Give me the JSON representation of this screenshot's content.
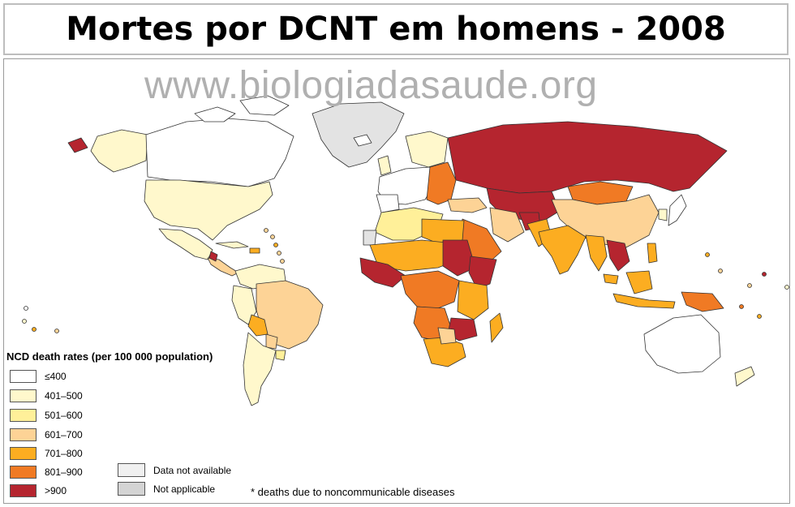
{
  "title": "Mortes por DCNT em homens - 2008",
  "watermark": "www.biologiadasaude.org",
  "legend": {
    "title": "NCD death rates (per 100 000 population)",
    "items": [
      {
        "label": "≤400",
        "color": "#ffffff"
      },
      {
        "label": "401–500",
        "color": "#fff8cc"
      },
      {
        "label": "501–600",
        "color": "#fff099"
      },
      {
        "label": "601–700",
        "color": "#fdd396"
      },
      {
        "label": "701–800",
        "color": "#fcad21"
      },
      {
        "label": "801–900",
        "color": "#f07a24"
      },
      {
        "label": ">900",
        "color": "#b5252f"
      }
    ],
    "special": [
      {
        "label": "Data not available",
        "color": "#f0f0f0"
      },
      {
        "label": "Not applicable",
        "color": "#d4d4d4"
      }
    ]
  },
  "footnote": "* deaths due to noncommunicable diseases"
}
